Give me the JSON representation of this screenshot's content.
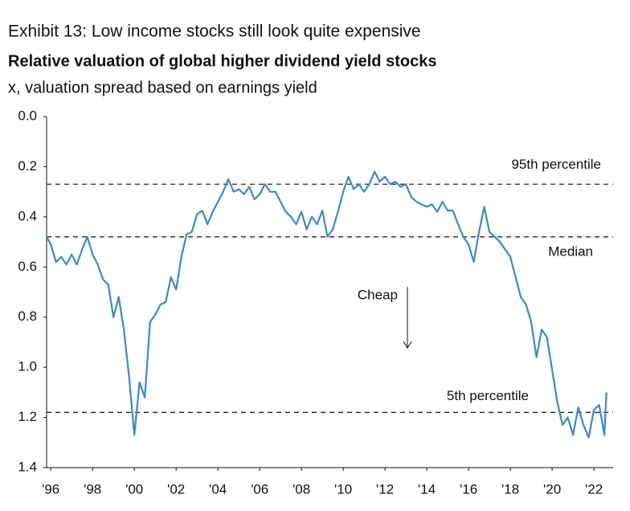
{
  "chart_data": {
    "type": "line",
    "title": "Exhibit 13: Low income stocks still look quite expensive",
    "subtitle": "Relative valuation of global higher dividend yield stocks",
    "y_label": "x, valuation spread based on earnings yield",
    "x": [
      1995.8,
      1996.0,
      1996.25,
      1996.5,
      1996.75,
      1997.0,
      1997.25,
      1997.5,
      1997.75,
      1998.0,
      1998.25,
      1998.5,
      1998.75,
      1999.0,
      1999.25,
      1999.5,
      1999.75,
      2000.0,
      2000.25,
      2000.5,
      2000.75,
      2001.0,
      2001.25,
      2001.5,
      2001.75,
      2002.0,
      2002.25,
      2002.5,
      2002.75,
      2003.0,
      2003.25,
      2003.5,
      2003.75,
      2004.0,
      2004.25,
      2004.5,
      2004.75,
      2005.0,
      2005.25,
      2005.5,
      2005.75,
      2006.0,
      2006.25,
      2006.5,
      2006.75,
      2007.0,
      2007.25,
      2007.5,
      2007.75,
      2008.0,
      2008.25,
      2008.5,
      2008.75,
      2009.0,
      2009.25,
      2009.5,
      2009.75,
      2010.0,
      2010.25,
      2010.5,
      2010.75,
      2011.0,
      2011.25,
      2011.5,
      2011.75,
      2012.0,
      2012.25,
      2012.5,
      2012.75,
      2013.0,
      2013.25,
      2013.5,
      2013.75,
      2014.0,
      2014.25,
      2014.5,
      2014.75,
      2015.0,
      2015.25,
      2015.5,
      2015.75,
      2016.0,
      2016.25,
      2016.5,
      2016.75,
      2017.0,
      2017.25,
      2017.5,
      2017.75,
      2018.0,
      2018.25,
      2018.5,
      2018.75,
      2019.0,
      2019.25,
      2019.5,
      2019.75,
      2020.0,
      2020.25,
      2020.5,
      2020.75,
      2021.0,
      2021.25,
      2021.5,
      2021.75,
      2022.0,
      2022.25,
      2022.5,
      2022.6
    ],
    "series": [
      {
        "color": "#3f88c5",
        "values": [
          0.48,
          0.51,
          0.58,
          0.56,
          0.59,
          0.55,
          0.59,
          0.53,
          0.48,
          0.55,
          0.59,
          0.65,
          0.67,
          0.8,
          0.72,
          0.85,
          1.04,
          1.27,
          1.06,
          1.12,
          0.82,
          0.79,
          0.75,
          0.74,
          0.64,
          0.69,
          0.56,
          0.47,
          0.46,
          0.39,
          0.375,
          0.43,
          0.38,
          0.34,
          0.3,
          0.25,
          0.3,
          0.29,
          0.31,
          0.28,
          0.33,
          0.31,
          0.27,
          0.3,
          0.3,
          0.34,
          0.38,
          0.4,
          0.43,
          0.38,
          0.45,
          0.4,
          0.43,
          0.375,
          0.48,
          0.45,
          0.38,
          0.3,
          0.24,
          0.29,
          0.27,
          0.3,
          0.27,
          0.22,
          0.26,
          0.24,
          0.27,
          0.26,
          0.28,
          0.27,
          0.32,
          0.34,
          0.35,
          0.36,
          0.35,
          0.38,
          0.34,
          0.375,
          0.375,
          0.43,
          0.48,
          0.51,
          0.58,
          0.46,
          0.36,
          0.46,
          0.48,
          0.5,
          0.53,
          0.56,
          0.64,
          0.72,
          0.75,
          0.82,
          0.96,
          0.85,
          0.88,
          1.01,
          1.14,
          1.23,
          1.2,
          1.27,
          1.16,
          1.23,
          1.28,
          1.17,
          1.15,
          1.27,
          1.1
        ]
      }
    ],
    "xlim": [
      1995.8,
      2022.92
    ],
    "xticks": [
      {
        "value": 1996,
        "label": "'96"
      },
      {
        "value": 1998,
        "label": "'98"
      },
      {
        "value": 2000,
        "label": "'00"
      },
      {
        "value": 2002,
        "label": "'02"
      },
      {
        "value": 2004,
        "label": "'04"
      },
      {
        "value": 2006,
        "label": "'06"
      },
      {
        "value": 2008,
        "label": "'08"
      },
      {
        "value": 2010,
        "label": "'10"
      },
      {
        "value": 2012,
        "label": "'12"
      },
      {
        "value": 2014,
        "label": "'14"
      },
      {
        "value": 2016,
        "label": "'16"
      },
      {
        "value": 2018,
        "label": "'18"
      },
      {
        "value": 2020,
        "label": "'20"
      },
      {
        "value": 2022,
        "label": "'22"
      }
    ],
    "ylim": [
      0,
      1.4
    ],
    "y_inverted": true,
    "yticks": [
      {
        "value": 0,
        "label": "0.0"
      },
      0.2,
      0.4,
      0.6,
      0.8,
      {
        "value": 1,
        "label": "1.0"
      },
      1.2,
      1.4
    ],
    "reference_lines": [
      {
        "value": 0.27,
        "label": "95th percentile"
      },
      {
        "value": 0.48,
        "label": "Median"
      },
      {
        "value": 1.18,
        "label": "5th percentile"
      }
    ],
    "annotation": "Cheap"
  }
}
